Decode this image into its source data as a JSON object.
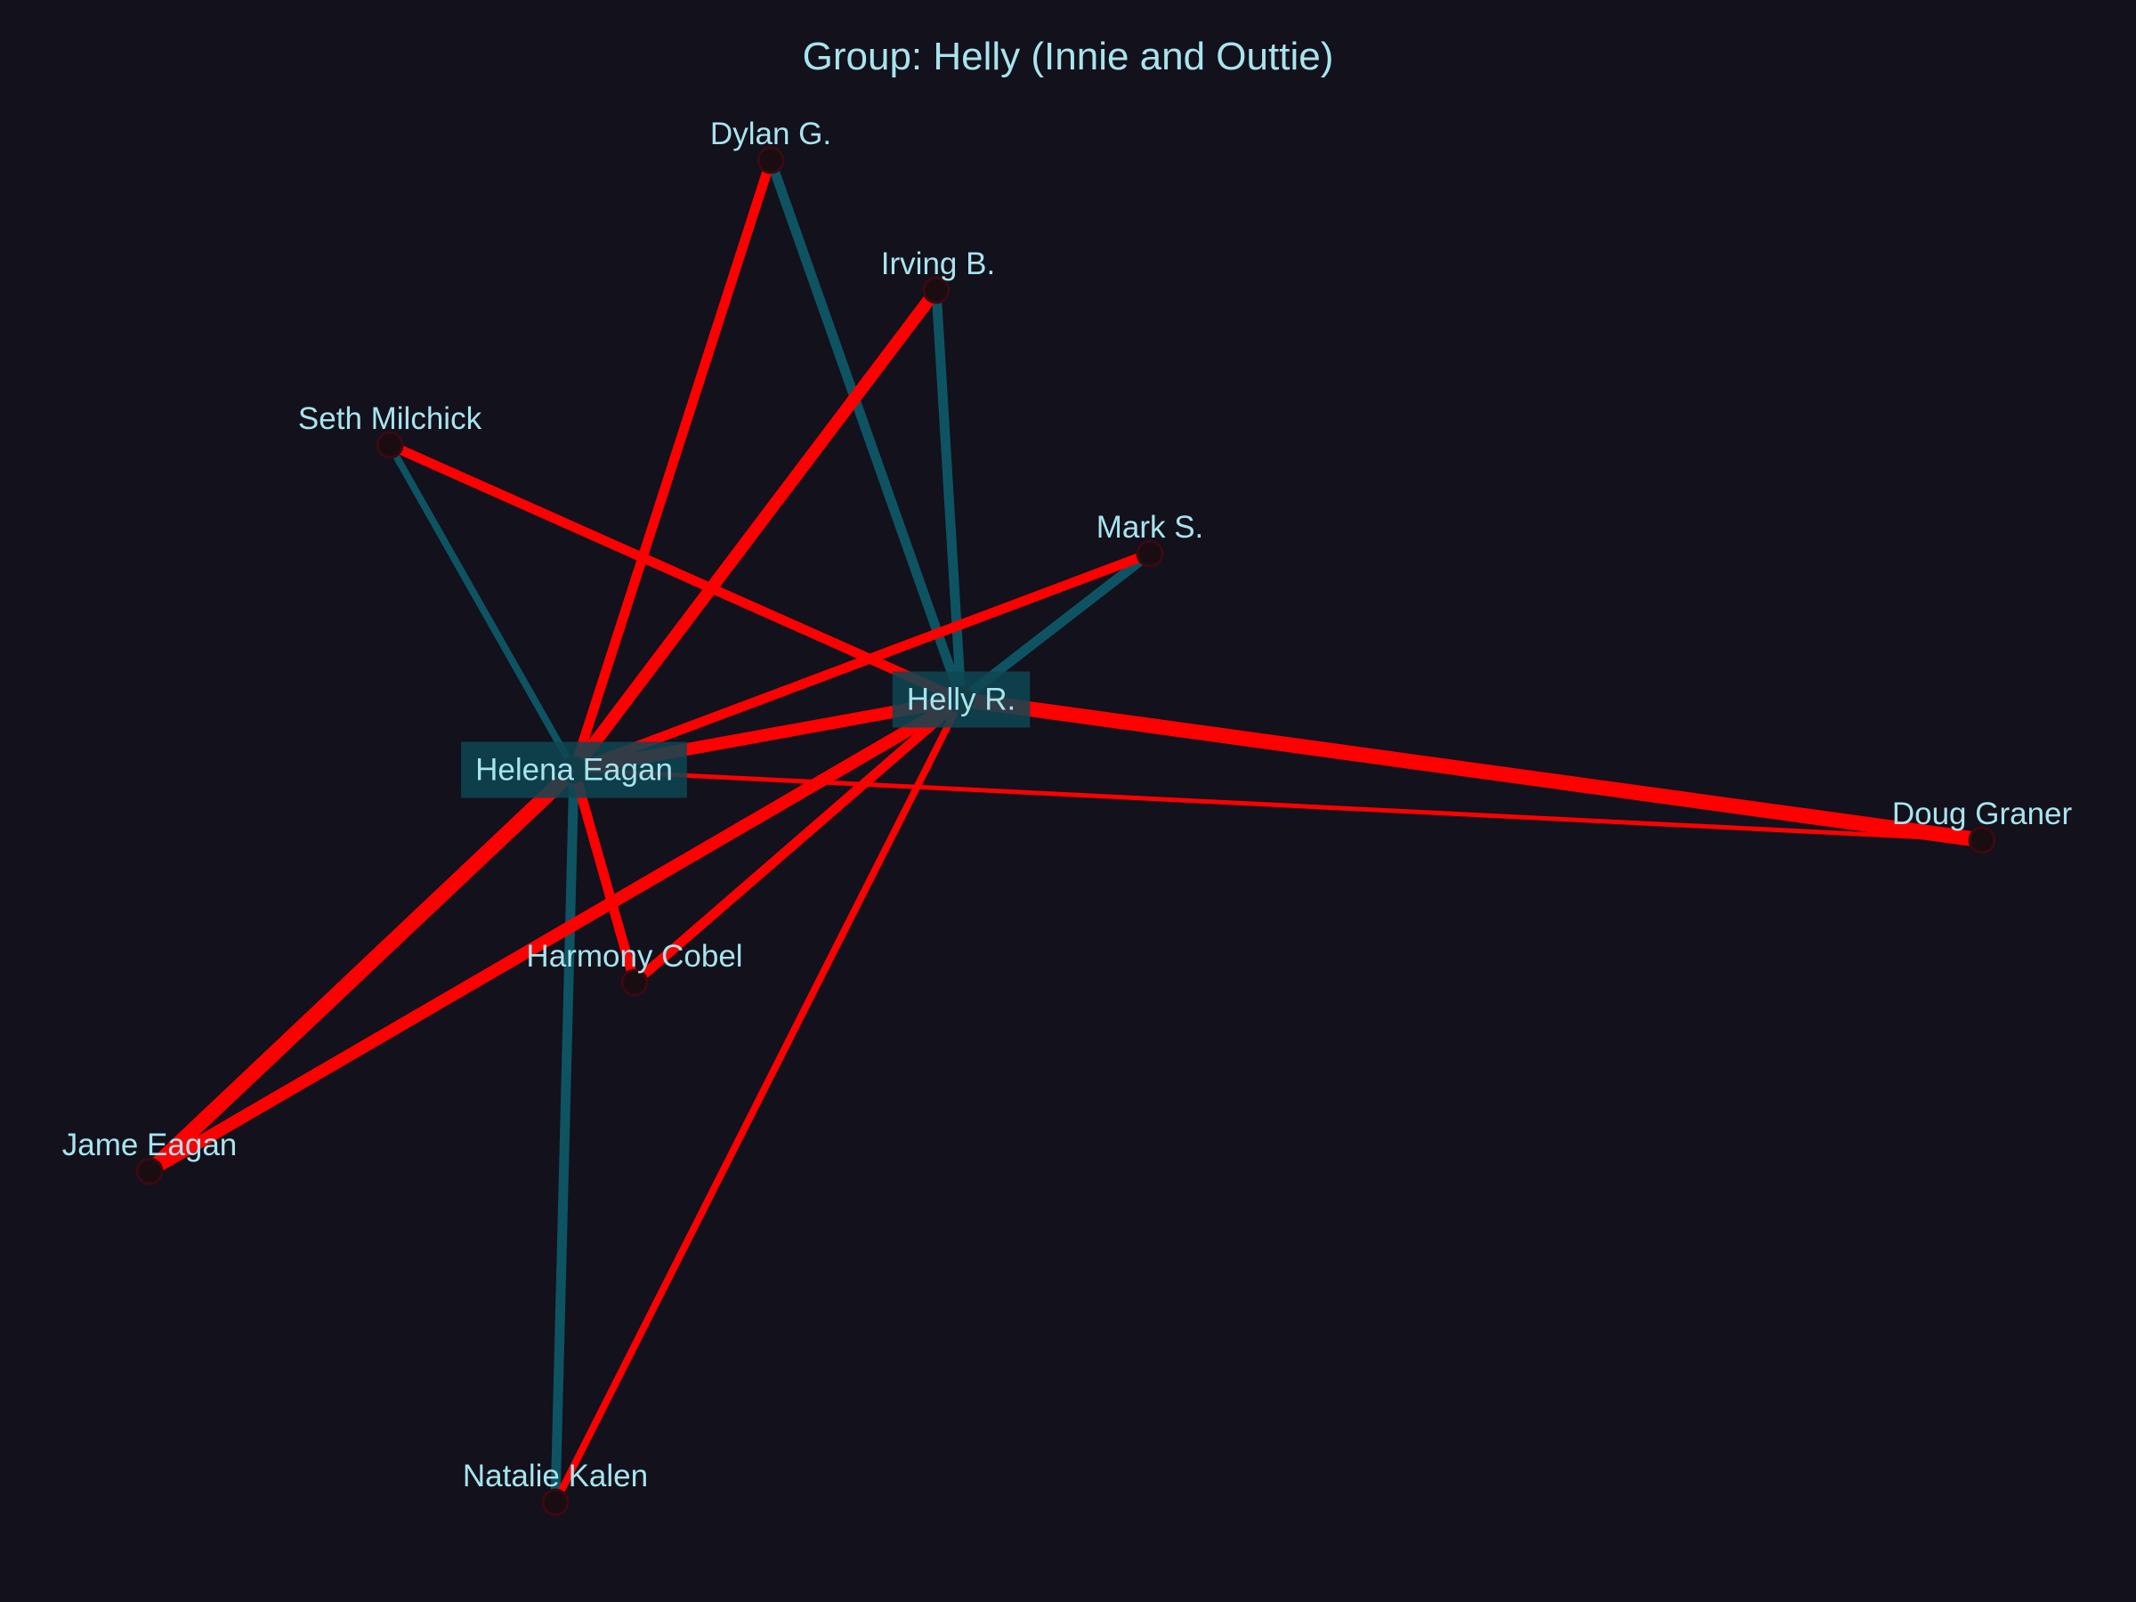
{
  "title": "Group: Helly (Innie and Outtie)",
  "colors": {
    "background": "#12111c",
    "text": "#a8e4ee",
    "teal_edge": "#0e5362",
    "red_edge": "#ff0000",
    "focus_box": "#0e4752"
  },
  "nodes": [
    {
      "id": "helly",
      "label": "Helly R.",
      "focus": true
    },
    {
      "id": "helena",
      "label": "Helena Eagan",
      "focus": true
    },
    {
      "id": "dylan",
      "label": "Dylan G."
    },
    {
      "id": "irving",
      "label": "Irving B."
    },
    {
      "id": "seth",
      "label": "Seth Milchick"
    },
    {
      "id": "mark",
      "label": "Mark S."
    },
    {
      "id": "doug",
      "label": "Doug Graner"
    },
    {
      "id": "harmony",
      "label": "Harmony Cobel"
    },
    {
      "id": "jame",
      "label": "Jame Eagan"
    },
    {
      "id": "natalie",
      "label": "Natalie Kalen"
    }
  ],
  "edges": [
    {
      "source": "helly",
      "target": "dylan",
      "type": "teal",
      "weight": 3
    },
    {
      "source": "helly",
      "target": "irving",
      "type": "teal",
      "weight": 3
    },
    {
      "source": "helly",
      "target": "mark",
      "type": "teal",
      "weight": 3
    },
    {
      "source": "helena",
      "target": "seth",
      "type": "teal",
      "weight": 2
    },
    {
      "source": "helena",
      "target": "natalie",
      "type": "teal",
      "weight": 3
    },
    {
      "source": "helena",
      "target": "dylan",
      "type": "red",
      "weight": 3
    },
    {
      "source": "helena",
      "target": "irving",
      "type": "red",
      "weight": 4
    },
    {
      "source": "helena",
      "target": "mark",
      "type": "red",
      "weight": 3
    },
    {
      "source": "helena",
      "target": "jame",
      "type": "red",
      "weight": 5
    },
    {
      "source": "helena",
      "target": "harmony",
      "type": "red",
      "weight": 3
    },
    {
      "source": "helena",
      "target": "doug",
      "type": "red",
      "weight": 1
    },
    {
      "source": "helena",
      "target": "helly",
      "type": "red",
      "weight": 4
    },
    {
      "source": "helly",
      "target": "seth",
      "type": "red",
      "weight": 3
    },
    {
      "source": "helly",
      "target": "doug",
      "type": "red",
      "weight": 5
    },
    {
      "source": "helly",
      "target": "harmony",
      "type": "red",
      "weight": 3
    },
    {
      "source": "helly",
      "target": "jame",
      "type": "red",
      "weight": 4
    },
    {
      "source": "helly",
      "target": "natalie",
      "type": "red",
      "weight": 2
    }
  ]
}
